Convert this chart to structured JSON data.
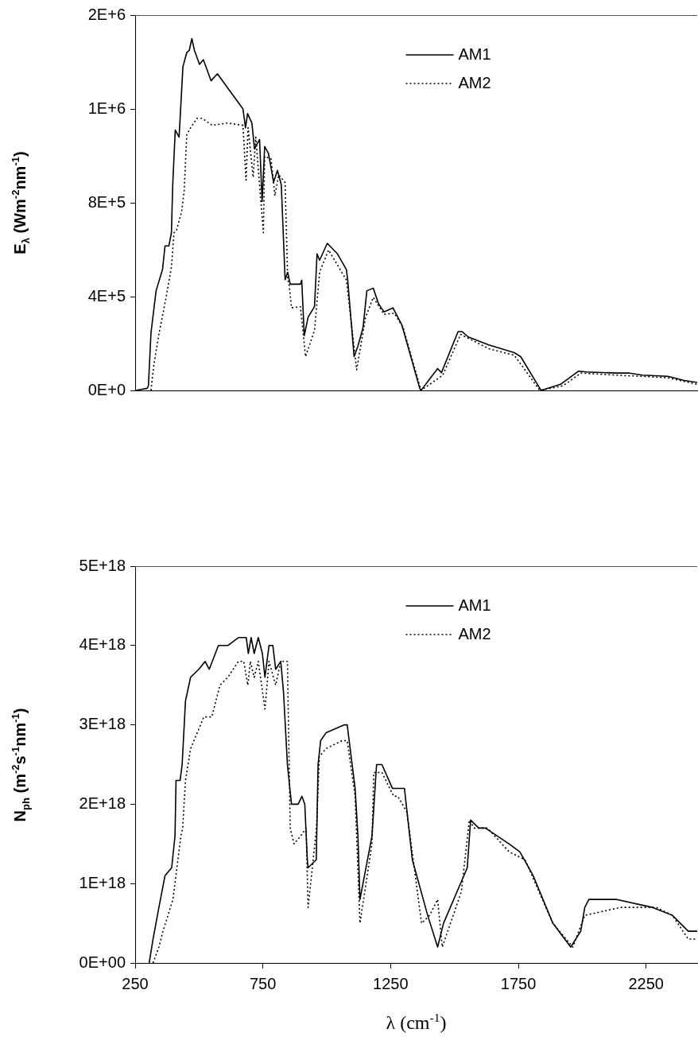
{
  "chart_data": [
    {
      "type": "line",
      "ylabel": "E$_{λ}$ (Wm$^{-2}$nm$^{-1}$)",
      "xlim": [
        250,
        2450
      ],
      "ylim": [
        0,
        1600000
      ],
      "yticks": [
        {
          "value": 0,
          "label": "0E+0"
        },
        {
          "value": 400000,
          "label": "4E+5"
        },
        {
          "value": 800000,
          "label": "8E+5"
        },
        {
          "value": 1200000,
          "label": "1E+6"
        },
        {
          "value": 1600000,
          "label": "2E+6"
        }
      ],
      "tick_labels": "y",
      "legend": "top",
      "marker": "none",
      "series": [
        {
          "name": "AM1",
          "color": "#000000",
          "line_style": "solid",
          "x": [
            252,
            297,
            302,
            312,
            332,
            357,
            367,
            382,
            392,
            397,
            407,
            422,
            437,
            452,
            462,
            472,
            482,
            502,
            517,
            547,
            572,
            612,
            672,
            682,
            690,
            707,
            717,
            737,
            747,
            757,
            772,
            792,
            807,
            822,
            837,
            847,
            857,
            897,
            902,
            912,
            927,
            952,
            962,
            972,
            1002,
            1042,
            1077,
            1082,
            1107,
            1122,
            1142,
            1157,
            1182,
            1203,
            1224,
            1259,
            1294,
            1364,
            1369,
            1434,
            1449,
            1514,
            1529,
            1554,
            1634,
            1734,
            1759,
            1834,
            1839,
            1915,
            1985,
            2015,
            2135,
            2185,
            2235,
            2335,
            2396,
            2450
          ],
          "values": [
            0,
            9000,
            20000,
            245000,
            425000,
            515000,
            616000,
            616000,
            672000,
            874000,
            1110000,
            1080000,
            1380000,
            1440000,
            1450000,
            1500000,
            1450000,
            1390000,
            1410000,
            1320000,
            1350000,
            1290000,
            1200000,
            1120000,
            1180000,
            1140000,
            1030000,
            1070000,
            805000,
            1040000,
            1010000,
            888000,
            938000,
            877000,
            472000,
            504000,
            453000,
            453000,
            470000,
            234000,
            312000,
            357000,
            582000,
            555000,
            627000,
            582000,
            515000,
            470000,
            144000,
            189000,
            268000,
            425000,
            436000,
            369000,
            335000,
            352000,
            279000,
            9000,
            0,
            93000,
            76000,
            251000,
            251000,
            228000,
            194000,
            161000,
            144000,
            9000,
            0,
            26000,
            82000,
            79000,
            74000,
            74000,
            65000,
            60000,
            43000,
            34000
          ]
        },
        {
          "name": "AM2",
          "color": "#000000",
          "line_style": "dotted",
          "x": [
            312,
            322,
            342,
            372,
            392,
            402,
            412,
            432,
            442,
            452,
            467,
            492,
            512,
            552,
            612,
            672,
            684,
            692,
            712,
            722,
            752,
            757,
            782,
            797,
            812,
            837,
            847,
            852,
            862,
            897,
            917,
            952,
            972,
            1007,
            1077,
            1117,
            1152,
            1182,
            1224,
            1264,
            1299,
            1369,
            1454,
            1524,
            1634,
            1734,
            1834,
            1925,
            1995,
            2135,
            2235,
            2335,
            2450
          ],
          "values": [
            0,
            99000,
            234000,
            402000,
            526000,
            672000,
            683000,
            762000,
            852000,
            1090000,
            1120000,
            1160000,
            1160000,
            1130000,
            1140000,
            1130000,
            897000,
            1120000,
            908000,
            1080000,
            672000,
            998000,
            987000,
            830000,
            919000,
            886000,
            470000,
            459000,
            352000,
            357000,
            144000,
            256000,
            504000,
            599000,
            470000,
            88000,
            312000,
            397000,
            324000,
            329000,
            268000,
            0,
            65000,
            239000,
            178000,
            150000,
            0,
            20000,
            74000,
            65000,
            60000,
            54000,
            26000
          ]
        }
      ]
    },
    {
      "type": "line",
      "xlabel": "λ  (cm$^{-1}$)",
      "ylabel": "N$_{ph}$ (m$^{-2}$s$^{-1}$nm$^{-1}$)",
      "xlim": [
        250,
        2450
      ],
      "xticks": [
        250,
        750,
        1250,
        1750,
        2250
      ],
      "ylim": [
        0,
        5e+18
      ],
      "yticks": [
        {
          "value": 0,
          "label": "0E+00"
        },
        {
          "value": 1e+18,
          "label": "1E+18"
        },
        {
          "value": 2e+18,
          "label": "2E+18"
        },
        {
          "value": 3e+18,
          "label": "3E+18"
        },
        {
          "value": 4e+18,
          "label": "4E+18"
        },
        {
          "value": 5e+18,
          "label": "5E+18"
        }
      ],
      "legend": "top",
      "marker": "none",
      "series": [
        {
          "name": "AM1",
          "color": "#000000",
          "line_style": "solid",
          "x": [
            305,
            320,
            343,
            367,
            393,
            406,
            410,
            426,
            434,
            447,
            467,
            499,
            524,
            540,
            576,
            613,
            654,
            685,
            693,
            704,
            716,
            732,
            748,
            758,
            774,
            789,
            800,
            820,
            831,
            846,
            862,
            888,
            903,
            914,
            924,
            927,
            959,
            966,
            976,
            997,
            1069,
            1080,
            1111,
            1122,
            1130,
            1177,
            1195,
            1216,
            1257,
            1278,
            1304,
            1335,
            1395,
            1434,
            1457,
            1550,
            1563,
            1595,
            1621,
            1714,
            1756,
            1808,
            1885,
            1955,
            1994,
            2010,
            2026,
            2135,
            2275,
            2353,
            2415,
            2450
          ],
          "values": [
            0,
            3e+17,
            7e+17,
            1.1e+18,
            1.2e+18,
            1.6e+18,
            2.3e+18,
            2.3e+18,
            2.5e+18,
            3.3e+18,
            3.6e+18,
            3.7e+18,
            3.8e+18,
            3.7e+18,
            4e+18,
            4e+18,
            4.1e+18,
            4.1e+18,
            3.9e+18,
            4.1e+18,
            3.9e+18,
            4.1e+18,
            3.9e+18,
            3.6e+18,
            4e+18,
            4e+18,
            3.7e+18,
            3.8e+18,
            3.4e+18,
            2.5e+18,
            2e+18,
            2e+18,
            2.1e+18,
            2e+18,
            1.3e+18,
            1.2e+18,
            1.3e+18,
            2.5e+18,
            2.8e+18,
            2.9e+18,
            3e+18,
            3e+18,
            2.2e+18,
            1.6e+18,
            8e+17,
            1.6e+18,
            2.5e+18,
            2.5e+18,
            2.2e+18,
            2.2e+18,
            2.2e+18,
            1.3e+18,
            6e+17,
            2e+17,
            5e+17,
            1.2e+18,
            1.8e+18,
            1.7e+18,
            1.7e+18,
            1.5e+18,
            1.4e+18,
            1.1e+18,
            5e+17,
            2e+17,
            4e+17,
            7e+17,
            8e+17,
            8e+17,
            7e+17,
            6e+17,
            4e+17,
            4e+17
          ]
        },
        {
          "name": "AM2",
          "color": "#000000",
          "line_style": "dotted",
          "x": [
            320,
            343,
            359,
            398,
            429,
            436,
            447,
            467,
            493,
            519,
            550,
            582,
            613,
            654,
            675,
            691,
            701,
            716,
            732,
            758,
            774,
            800,
            820,
            846,
            857,
            872,
            898,
            919,
            927,
            960,
            971,
            997,
            1059,
            1080,
            1111,
            1130,
            1177,
            1184,
            1216,
            1262,
            1278,
            1314,
            1371,
            1403,
            1434,
            1452,
            1527,
            1558,
            1577,
            1629,
            1714,
            1776,
            1885,
            1963,
            2010,
            2150,
            2290,
            2353,
            2415,
            2450
          ],
          "values": [
            0,
            2e+17,
            4e+17,
            8e+17,
            1.6e+18,
            1.7e+18,
            2.3e+18,
            2.7e+18,
            2.9e+18,
            3.1e+18,
            3.1e+18,
            3.5e+18,
            3.6e+18,
            3.8e+18,
            3.8e+18,
            3.5e+18,
            3.8e+18,
            3.6e+18,
            3.8e+18,
            3.2e+18,
            3.8e+18,
            3.5e+18,
            3.8e+18,
            3.8e+18,
            1.7e+18,
            1.5e+18,
            1.6e+18,
            1.7e+18,
            7e+17,
            1.7e+18,
            2.6e+18,
            2.7e+18,
            2.8e+18,
            2.8e+18,
            2.1e+18,
            5e+17,
            1.5e+18,
            2.4e+18,
            2.4e+18,
            2.1e+18,
            2.1e+18,
            1.9e+18,
            5e+17,
            6e+17,
            8e+17,
            2e+17,
            9e+17,
            1.8e+18,
            1.7e+18,
            1.7e+18,
            1.4e+18,
            1.3e+18,
            5e+17,
            2e+17,
            6e+17,
            7e+17,
            7e+17,
            6e+17,
            3e+17,
            3e+17
          ]
        }
      ]
    }
  ]
}
